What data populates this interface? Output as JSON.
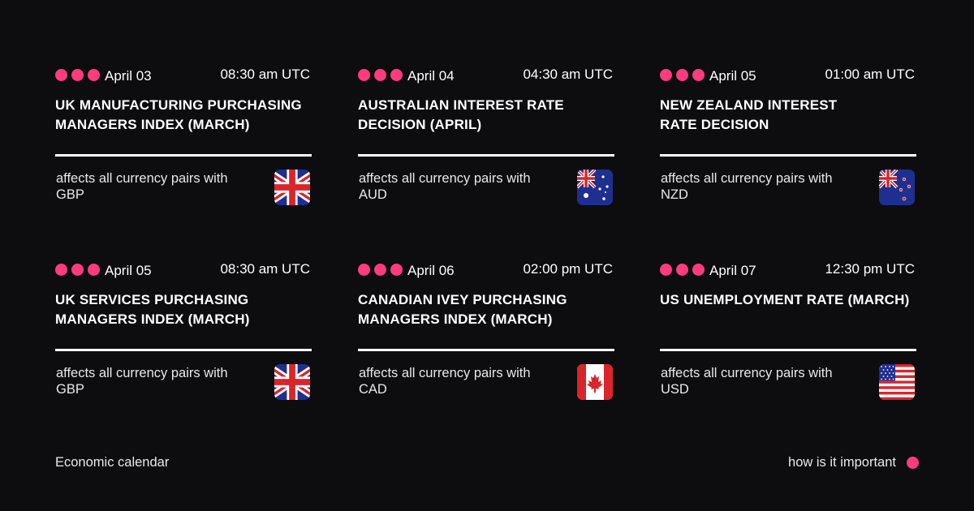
{
  "accent_color": "#ff3b7f",
  "events": [
    {
      "date": "April 03",
      "time": "08:30 am UTC",
      "title": "UK MANUFACTURING PURCHASING MANAGERS INDEX (MARCH)",
      "affects": "affects all currency pairs with GBP",
      "flag": "uk-flag-icon",
      "importance": 3
    },
    {
      "date": "April 04",
      "time": "04:30 am UTC",
      "title": "AUSTRALIAN INTEREST RATE DECISION (APRIL)",
      "affects": "affects all currency pairs with AUD",
      "flag": "australia-flag-icon",
      "importance": 3
    },
    {
      "date": "April 05",
      "time": "01:00 am UTC",
      "title": "NEW ZEALAND INTEREST RATE DECISION",
      "affects": "affects all currency pairs with NZD",
      "flag": "new-zealand-flag-icon",
      "importance": 3
    },
    {
      "date": "April 05",
      "time": "08:30 am UTC",
      "title": "UK SERVICES PURCHASING MANAGERS INDEX (MARCH)",
      "affects": "affects all currency pairs with GBP",
      "flag": "uk-flag-icon",
      "importance": 3
    },
    {
      "date": "April 06",
      "time": "02:00 pm UTC",
      "title": "CANADIAN IVEY PURCHASING MANAGERS INDEX (MARCH)",
      "affects": "affects all currency pairs with CAD",
      "flag": "canada-flag-icon",
      "importance": 3
    },
    {
      "date": "April 07",
      "time": "12:30 pm UTC",
      "title": "US UNEMPLOYMENT RATE (MARCH)",
      "affects": "affects all currency pairs with USD",
      "flag": "us-flag-icon",
      "importance": 3
    }
  ],
  "footer": {
    "left": "Economic calendar",
    "right": "how is it important"
  }
}
